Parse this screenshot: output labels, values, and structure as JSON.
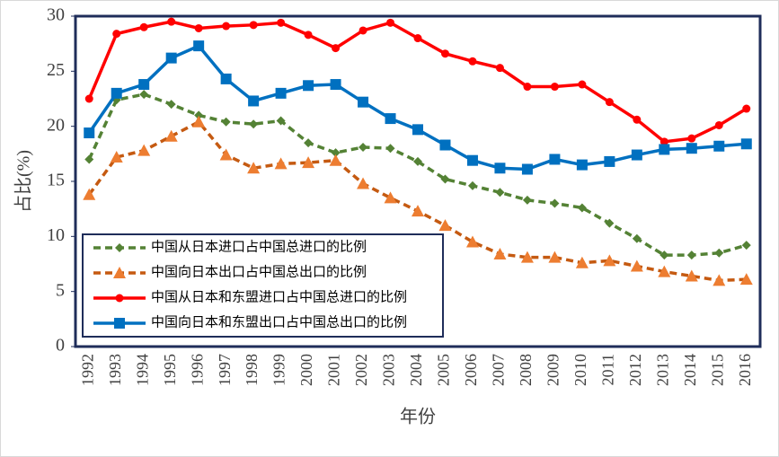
{
  "chart_data": {
    "type": "line",
    "xlabel": "年份",
    "ylabel": "占比(%)",
    "categories": [
      "1992",
      "1993",
      "1994",
      "1995",
      "1996",
      "1997",
      "1998",
      "1999",
      "2000",
      "2001",
      "2002",
      "2003",
      "2004",
      "2005",
      "2006",
      "2007",
      "2008",
      "2009",
      "2010",
      "2011",
      "2012",
      "2013",
      "2014",
      "2015",
      "2016"
    ],
    "ylim": [
      0,
      30
    ],
    "yticks": [
      0,
      5,
      10,
      15,
      20,
      25,
      30
    ],
    "legend": "lower-left",
    "series": [
      {
        "name": "中国从日本进口占中国总进口的比例",
        "color": "#548235",
        "dashed": true,
        "marker": "diamond",
        "values": [
          17.0,
          22.4,
          22.9,
          22.0,
          21.0,
          20.4,
          20.2,
          20.5,
          18.5,
          17.6,
          18.1,
          18.0,
          16.8,
          15.2,
          14.6,
          14.0,
          13.3,
          13.0,
          12.6,
          11.2,
          9.8,
          8.3,
          8.3,
          8.5,
          9.2
        ]
      },
      {
        "name": "中国向日本出口占中国总出口的比例",
        "color": "#c55a11",
        "dashed": true,
        "marker": "triangle",
        "values": [
          13.8,
          17.2,
          17.8,
          19.1,
          20.4,
          17.4,
          16.2,
          16.6,
          16.7,
          16.9,
          14.8,
          13.5,
          12.3,
          11.0,
          9.5,
          8.4,
          8.1,
          8.1,
          7.6,
          7.8,
          7.3,
          6.8,
          6.4,
          6.0,
          6.1
        ]
      },
      {
        "name": "中国从日本和东盟进口占中国总进口的比例",
        "color": "#ff0000",
        "dashed": false,
        "marker": "circle",
        "values": [
          22.5,
          28.4,
          29.0,
          29.5,
          28.9,
          29.1,
          29.2,
          29.4,
          28.3,
          27.1,
          28.7,
          29.4,
          28.0,
          26.6,
          25.9,
          25.3,
          23.6,
          23.6,
          23.8,
          22.2,
          20.6,
          18.6,
          18.9,
          20.1,
          21.6
        ]
      },
      {
        "name": "中国向日本和东盟出口占中国总出口的比例",
        "color": "#0070c0",
        "dashed": false,
        "marker": "square",
        "values": [
          19.4,
          23.0,
          23.8,
          26.2,
          27.3,
          24.3,
          22.3,
          23.0,
          23.7,
          23.8,
          22.2,
          20.7,
          19.7,
          18.3,
          16.9,
          16.2,
          16.1,
          17.0,
          16.5,
          16.8,
          17.4,
          17.9,
          18.0,
          18.2,
          18.4
        ]
      }
    ]
  }
}
